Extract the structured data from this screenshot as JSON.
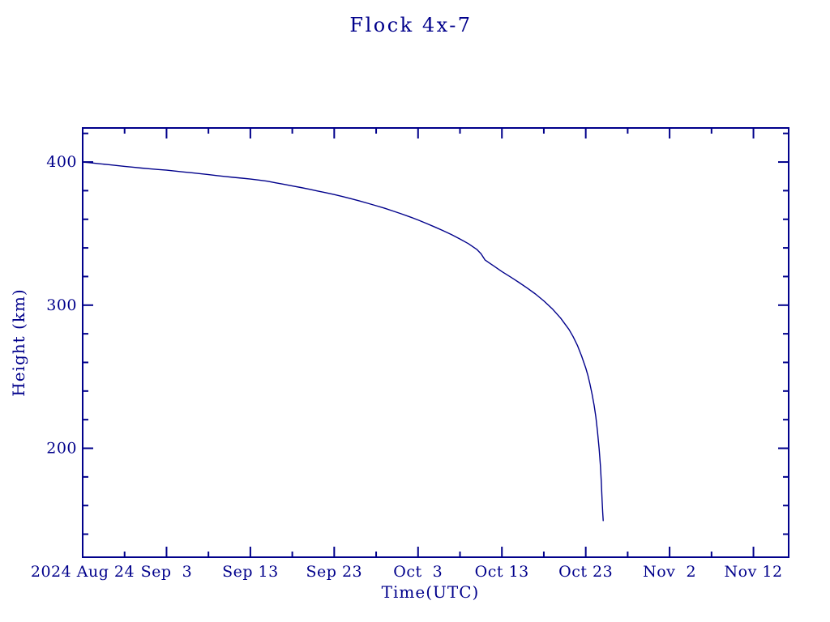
{
  "colors": {
    "ink": "#00008b",
    "background": "#ffffff"
  },
  "chart_data": {
    "type": "line",
    "title": "Flock 4x-7",
    "xlabel": "Time(UTC)",
    "ylabel": "Height (km)",
    "grid": false,
    "legend": null,
    "x_unit": "days since 2024 Aug 24 00:00 UTC",
    "xlim": [
      0,
      84.2
    ],
    "ylim": [
      123.9,
      423.8
    ],
    "x_major_ticks": [
      {
        "day": 0,
        "label": "2024 Aug 24"
      },
      {
        "day": 10,
        "label": "Sep  3"
      },
      {
        "day": 20,
        "label": "Sep 13"
      },
      {
        "day": 30,
        "label": "Sep 23"
      },
      {
        "day": 40,
        "label": "Oct  3"
      },
      {
        "day": 50,
        "label": "Oct 13"
      },
      {
        "day": 60,
        "label": "Oct 23"
      },
      {
        "day": 70,
        "label": "Nov  2"
      },
      {
        "day": 80,
        "label": "Nov 12"
      }
    ],
    "x_minor_step_days": 5,
    "y_major_ticks": [
      {
        "km": 200,
        "label": "200"
      },
      {
        "km": 300,
        "label": "300"
      },
      {
        "km": 400,
        "label": "400"
      }
    ],
    "y_minor_step_km": 20,
    "series": [
      {
        "name": "Flock 4x-7 orbital height",
        "start_date": "2024 Aug 24",
        "end_date": "2024 Oct 25",
        "points_day_km": [
          [
            0,
            400.0
          ],
          [
            1,
            399.4
          ],
          [
            2,
            398.8
          ],
          [
            3,
            398.2
          ],
          [
            4,
            397.6
          ],
          [
            5,
            397.0
          ],
          [
            6,
            396.4
          ],
          [
            7,
            395.8
          ],
          [
            8,
            395.3
          ],
          [
            9,
            394.8
          ],
          [
            10,
            394.3
          ],
          [
            11,
            393.7
          ],
          [
            12,
            393.1
          ],
          [
            13,
            392.5
          ],
          [
            14,
            391.9
          ],
          [
            15,
            391.2
          ],
          [
            16,
            390.5
          ],
          [
            17,
            389.9
          ],
          [
            18,
            389.3
          ],
          [
            19,
            388.7
          ],
          [
            20,
            388.1
          ],
          [
            21,
            387.4
          ],
          [
            22,
            386.6
          ],
          [
            23,
            385.5
          ],
          [
            24,
            384.4
          ],
          [
            25,
            383.3
          ],
          [
            26,
            382.2
          ],
          [
            27,
            381.0
          ],
          [
            28,
            379.8
          ],
          [
            29,
            378.6
          ],
          [
            30,
            377.3
          ],
          [
            31,
            375.9
          ],
          [
            32,
            374.4
          ],
          [
            33,
            372.8
          ],
          [
            34,
            371.2
          ],
          [
            35,
            369.5
          ],
          [
            36,
            367.7
          ],
          [
            37,
            365.8
          ],
          [
            38,
            363.8
          ],
          [
            39,
            361.7
          ],
          [
            40,
            359.5
          ],
          [
            41,
            357.1
          ],
          [
            42,
            354.6
          ],
          [
            43,
            352.0
          ],
          [
            44,
            349.2
          ],
          [
            45,
            346.2
          ],
          [
            46,
            343.0
          ],
          [
            47,
            339.0
          ],
          [
            47.5,
            336.0
          ],
          [
            48,
            331.5
          ],
          [
            48.5,
            329.5
          ],
          [
            49,
            327.5
          ],
          [
            50,
            323.5
          ],
          [
            51,
            319.8
          ],
          [
            52,
            316.0
          ],
          [
            53,
            312.0
          ],
          [
            54,
            307.8
          ],
          [
            55,
            303.0
          ],
          [
            56,
            297.5
          ],
          [
            57,
            291.0
          ],
          [
            58,
            283.0
          ],
          [
            58.5,
            278.0
          ],
          [
            59,
            272.0
          ],
          [
            59.5,
            264.5
          ],
          [
            60,
            256.0
          ],
          [
            60.25,
            251.0
          ],
          [
            60.5,
            245.0
          ],
          [
            60.75,
            238.0
          ],
          [
            61,
            230.0
          ],
          [
            61.2,
            222.0
          ],
          [
            61.4,
            212.0
          ],
          [
            61.6,
            199.5
          ],
          [
            61.75,
            187.5
          ],
          [
            61.85,
            177.0
          ],
          [
            61.95,
            164.0
          ],
          [
            62.02,
            155.0
          ],
          [
            62.08,
            149.5
          ]
        ]
      }
    ]
  }
}
